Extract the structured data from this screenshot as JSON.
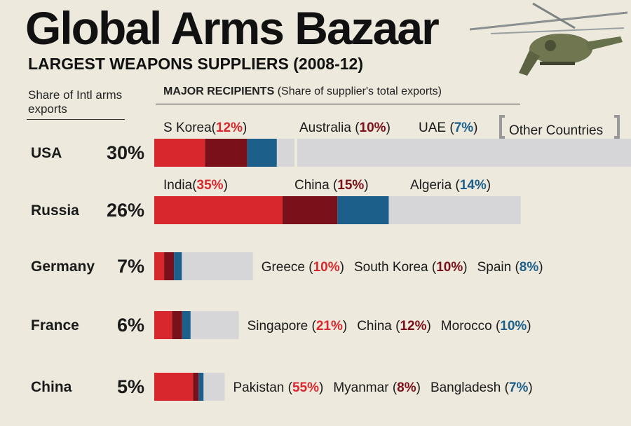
{
  "header": {
    "title": "Global Arms Bazaar",
    "subtitle": "LARGEST WEAPONS SUPPLIERS (2008-12)",
    "share_label": "Share of Intl arms exports",
    "recipients_label_bold": "MAJOR RECIPIENTS",
    "recipients_label_rest": " (Share of supplier's total exports)"
  },
  "colors": {
    "first": "#d9272e",
    "second": "#7a1019",
    "third": "#1b5f8a",
    "other": "#d6d6d8",
    "text": "#1a1a1a"
  },
  "chart_data": {
    "type": "bar",
    "title": "Global Arms Bazaar",
    "subtitle": "LARGEST WEAPONS SUPPLIERS (2008-12)",
    "legend_other": "Other Countries",
    "suppliers": [
      {
        "name": "USA",
        "share": 30,
        "share_label": "30%",
        "recipients": [
          {
            "name": "S Korea",
            "pct": 12
          },
          {
            "name": "Australia",
            "pct": 10
          },
          {
            "name": "UAE",
            "pct": 7
          }
        ]
      },
      {
        "name": "Russia",
        "share": 26,
        "share_label": "26%",
        "recipients": [
          {
            "name": "India",
            "pct": 35
          },
          {
            "name": "China",
            "pct": 15
          },
          {
            "name": "Algeria",
            "pct": 14
          }
        ]
      },
      {
        "name": "Germany",
        "share": 7,
        "share_label": "7%",
        "recipients": [
          {
            "name": "Greece",
            "pct": 10
          },
          {
            "name": "South Korea",
            "pct": 10
          },
          {
            "name": "Spain",
            "pct": 8
          }
        ]
      },
      {
        "name": "France",
        "share": 6,
        "share_label": "6%",
        "recipients": [
          {
            "name": "Singapore",
            "pct": 21
          },
          {
            "name": "China",
            "pct": 12
          },
          {
            "name": "Morocco",
            "pct": 10
          }
        ]
      },
      {
        "name": "China",
        "share": 5,
        "share_label": "5%",
        "recipients": [
          {
            "name": "Pakistan",
            "pct": 55
          },
          {
            "name": "Myanmar",
            "pct": 8
          },
          {
            "name": "Bangladesh",
            "pct": 7
          }
        ]
      }
    ]
  }
}
